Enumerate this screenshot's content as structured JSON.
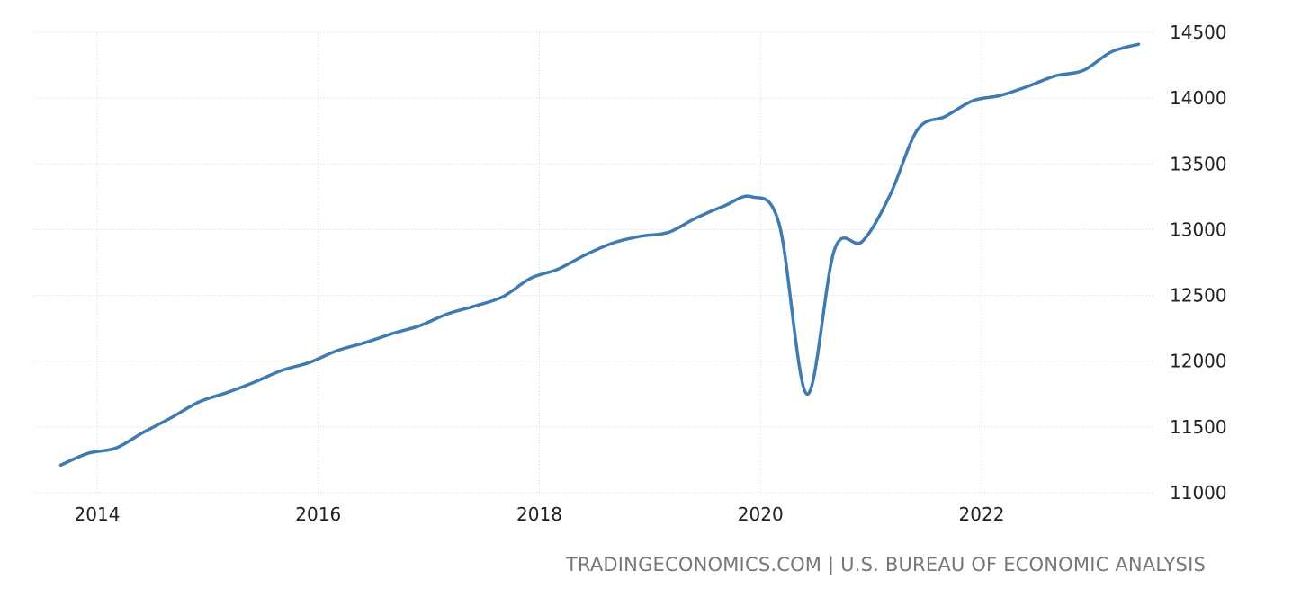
{
  "chart_data": {
    "type": "line",
    "title": "",
    "xlabel": "",
    "ylabel": "",
    "xlim": [
      2013.5,
      2023.75
    ],
    "ylim": [
      11000,
      14500
    ],
    "x_ticks": [
      {
        "value": 2014,
        "label": "2014"
      },
      {
        "value": 2016,
        "label": "2016"
      },
      {
        "value": 2018,
        "label": "2018"
      },
      {
        "value": 2020,
        "label": "2020"
      },
      {
        "value": 2022,
        "label": "2022"
      }
    ],
    "y_ticks": [
      {
        "value": 11000,
        "label": "11000"
      },
      {
        "value": 11500,
        "label": "11500"
      },
      {
        "value": 12000,
        "label": "12000"
      },
      {
        "value": 12500,
        "label": "12500"
      },
      {
        "value": 13000,
        "label": "13000"
      },
      {
        "value": 13500,
        "label": "13500"
      },
      {
        "value": 14000,
        "label": "14000"
      },
      {
        "value": 14500,
        "label": "14500"
      }
    ],
    "grid": true,
    "y_axis_side": "right",
    "legend": "none",
    "series": [
      {
        "color": "#3f7bb0",
        "points": [
          {
            "x": 2013.67,
            "y": 11210
          },
          {
            "x": 2013.92,
            "y": 11300
          },
          {
            "x": 2014.17,
            "y": 11340
          },
          {
            "x": 2014.42,
            "y": 11460
          },
          {
            "x": 2014.67,
            "y": 11570
          },
          {
            "x": 2014.92,
            "y": 11690
          },
          {
            "x": 2015.17,
            "y": 11760
          },
          {
            "x": 2015.42,
            "y": 11840
          },
          {
            "x": 2015.67,
            "y": 11930
          },
          {
            "x": 2015.92,
            "y": 11990
          },
          {
            "x": 2016.17,
            "y": 12080
          },
          {
            "x": 2016.42,
            "y": 12140
          },
          {
            "x": 2016.67,
            "y": 12210
          },
          {
            "x": 2016.92,
            "y": 12270
          },
          {
            "x": 2017.17,
            "y": 12360
          },
          {
            "x": 2017.42,
            "y": 12420
          },
          {
            "x": 2017.67,
            "y": 12490
          },
          {
            "x": 2017.92,
            "y": 12630
          },
          {
            "x": 2018.17,
            "y": 12700
          },
          {
            "x": 2018.42,
            "y": 12810
          },
          {
            "x": 2018.67,
            "y": 12900
          },
          {
            "x": 2018.92,
            "y": 12950
          },
          {
            "x": 2019.17,
            "y": 12980
          },
          {
            "x": 2019.42,
            "y": 13090
          },
          {
            "x": 2019.67,
            "y": 13180
          },
          {
            "x": 2019.92,
            "y": 13250
          },
          {
            "x": 2020.17,
            "y": 13040
          },
          {
            "x": 2020.42,
            "y": 11750
          },
          {
            "x": 2020.67,
            "y": 12850
          },
          {
            "x": 2020.92,
            "y": 12910
          },
          {
            "x": 2021.17,
            "y": 13260
          },
          {
            "x": 2021.42,
            "y": 13760
          },
          {
            "x": 2021.67,
            "y": 13860
          },
          {
            "x": 2021.92,
            "y": 13980
          },
          {
            "x": 2022.17,
            "y": 14020
          },
          {
            "x": 2022.42,
            "y": 14090
          },
          {
            "x": 2022.67,
            "y": 14170
          },
          {
            "x": 2022.92,
            "y": 14210
          },
          {
            "x": 2023.17,
            "y": 14350
          },
          {
            "x": 2023.42,
            "y": 14410
          }
        ]
      }
    ]
  },
  "source_note": "TRADINGECONOMICS.COM | U.S. BUREAU OF ECONOMIC ANALYSIS"
}
